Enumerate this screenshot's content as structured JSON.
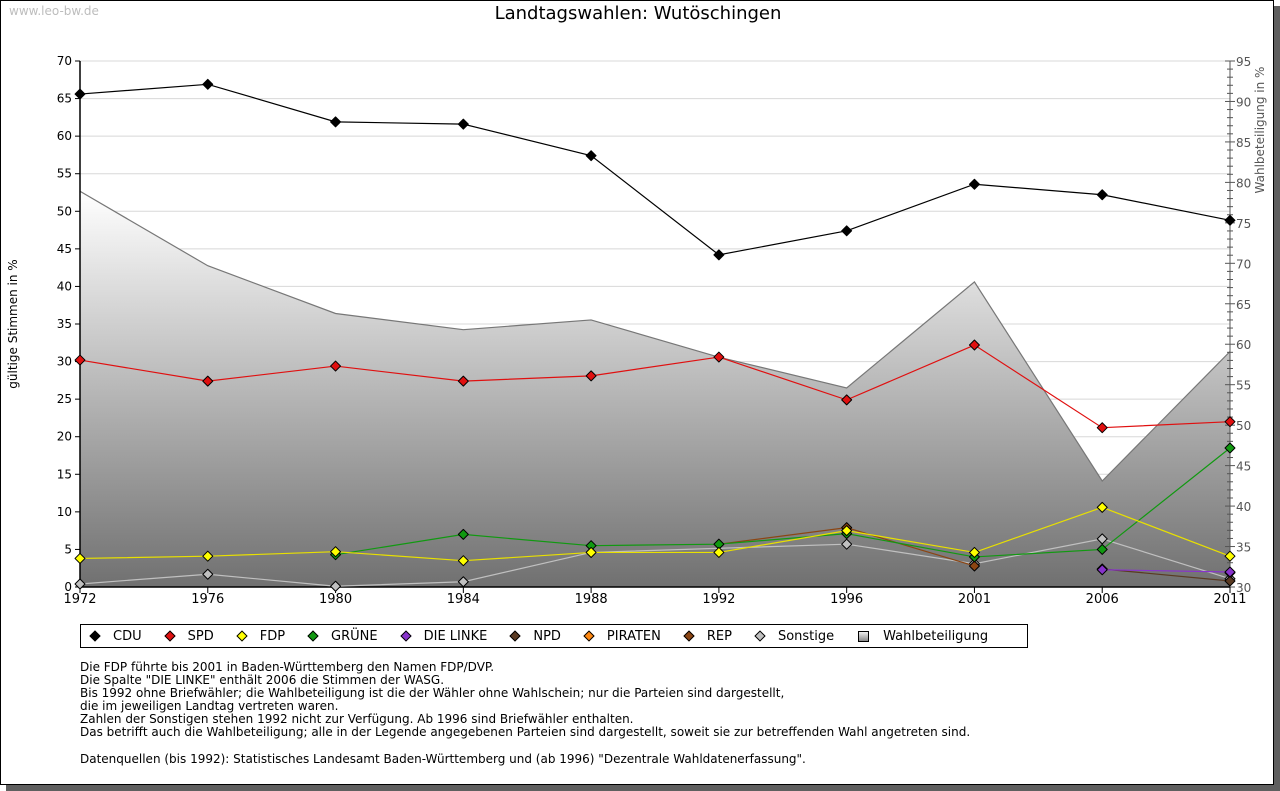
{
  "watermark": "www.leo-bw.de",
  "legend": [
    {
      "label": "CDU",
      "color": "#000000",
      "type": "marker"
    },
    {
      "label": "SPD",
      "color": "#e01010",
      "type": "marker"
    },
    {
      "label": "FDP",
      "color": "#ffff00",
      "type": "marker"
    },
    {
      "label": "GRÜNE",
      "color": "#119911",
      "type": "marker"
    },
    {
      "label": "DIE LINKE",
      "color": "#8833cc",
      "type": "marker"
    },
    {
      "label": "NPD",
      "color": "#5a3a22",
      "type": "marker"
    },
    {
      "label": "PIRATEN",
      "color": "#ff8811",
      "type": "marker"
    },
    {
      "label": "REP",
      "color": "#8b4513",
      "type": "marker"
    },
    {
      "label": "Sonstige",
      "color": "#c0c0c0",
      "type": "marker"
    },
    {
      "label": "Wahlbeteiligung",
      "color": "#aaaaaa",
      "type": "area"
    }
  ],
  "notes": [
    "Die FDP führte bis 2001 in Baden-Württemberg den Namen FDP/DVP.",
    "Die Spalte \"DIE LINKE\" enthält 2006 die Stimmen der WASG.",
    "Bis 1992 ohne Briefwähler; die Wahlbeteiligung ist die der Wähler ohne Wahlschein; nur die Parteien sind dargestellt,",
    "die im jeweiligen Landtag vertreten waren.",
    "Zahlen der Sonstigen stehen 1992 nicht zur Verfügung. Ab 1996 sind Briefwähler enthalten.",
    "Das betrifft auch die Wahlbeteiligung; alle in der Legende angegebenen Parteien sind dargestellt, soweit sie zur betreffenden Wahl angetreten sind."
  ],
  "source": "Datenquellen (bis 1992): Statistisches Landesamt Baden-Württemberg und (ab 1996) \"Dezentrale Wahldatenerfassung\".",
  "chart_data": {
    "type": "line",
    "title": "Landtagswahlen: Wutöschingen",
    "xlabel": "",
    "ylabel": "gültige Stimmen in %",
    "y2label": "Wahlbeteiligung in %",
    "categories": [
      "1972",
      "1976",
      "1980",
      "1984",
      "1988",
      "1992",
      "1996",
      "2001",
      "2006",
      "2011"
    ],
    "ylim": [
      0,
      70
    ],
    "y2lim": [
      30,
      95
    ],
    "yticks": [
      0,
      5,
      10,
      15,
      20,
      25,
      30,
      35,
      40,
      45,
      50,
      55,
      60,
      65,
      70
    ],
    "y2ticks": [
      30,
      35,
      40,
      45,
      50,
      55,
      60,
      65,
      70,
      75,
      80,
      85,
      90,
      95
    ],
    "grid": true,
    "legend_position": "bottom",
    "area": {
      "name": "Wahlbeteiligung",
      "axis": "right",
      "values": [
        78.9,
        69.7,
        63.8,
        61.8,
        63.0,
        58.4,
        54.6,
        67.7,
        43.1,
        59.1
      ]
    },
    "series": [
      {
        "name": "CDU",
        "color": "#000000",
        "values": [
          65.6,
          66.9,
          61.9,
          61.6,
          57.4,
          44.2,
          47.4,
          53.6,
          52.2,
          48.8
        ]
      },
      {
        "name": "SPD",
        "color": "#e01010",
        "values": [
          30.2,
          27.4,
          29.4,
          27.4,
          28.1,
          30.6,
          24.9,
          32.2,
          21.2,
          22.0
        ]
      },
      {
        "name": "FDP",
        "color": "#ffff00",
        "values": [
          3.8,
          4.1,
          4.7,
          3.5,
          4.6,
          4.6,
          7.5,
          4.6,
          10.6,
          4.1
        ]
      },
      {
        "name": "GRÜNE",
        "color": "#119911",
        "values": [
          null,
          null,
          4.3,
          7.0,
          5.5,
          5.7,
          7.1,
          4.0,
          5.0,
          18.5
        ]
      },
      {
        "name": "DIE LINKE",
        "color": "#8833cc",
        "values": [
          null,
          null,
          null,
          null,
          null,
          null,
          null,
          null,
          2.3,
          2.0
        ]
      },
      {
        "name": "NPD",
        "color": "#5a3a22",
        "values": [
          null,
          null,
          null,
          null,
          null,
          null,
          null,
          null,
          2.4,
          0.8
        ]
      },
      {
        "name": "PIRATEN",
        "color": "#ff8811",
        "values": [
          null,
          null,
          null,
          null,
          null,
          null,
          null,
          null,
          null,
          1.9
        ]
      },
      {
        "name": "REP",
        "color": "#8b4513",
        "values": [
          null,
          null,
          null,
          null,
          null,
          5.7,
          7.9,
          2.8,
          null,
          null
        ]
      },
      {
        "name": "Sonstige",
        "color": "#c0c0c0",
        "values": [
          0.4,
          1.7,
          0.1,
          0.7,
          4.6,
          null,
          5.7,
          3.1,
          6.4,
          1.1
        ]
      }
    ]
  }
}
